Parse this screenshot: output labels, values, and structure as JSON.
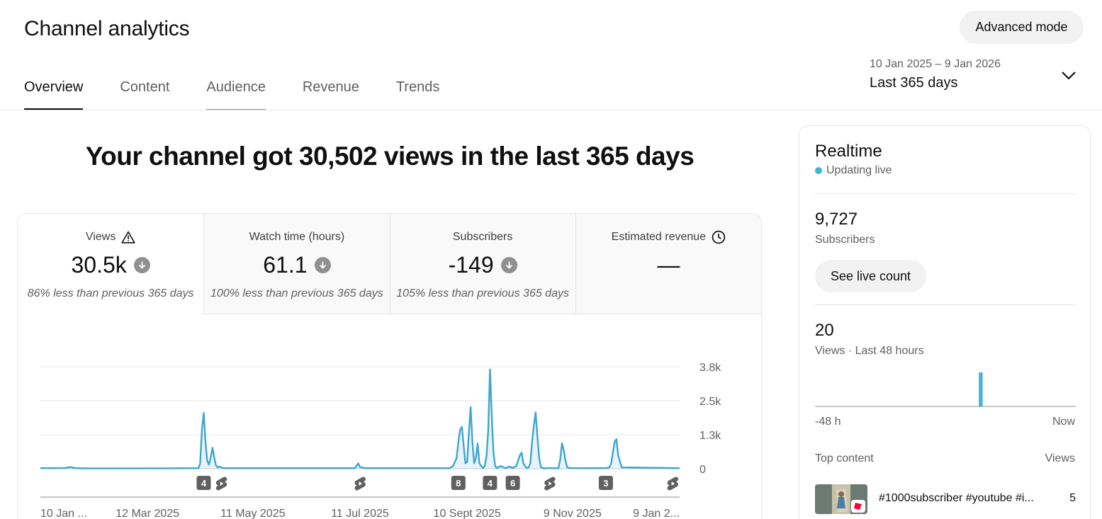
{
  "header": {
    "title": "Channel analytics",
    "advanced_mode_label": "Advanced mode"
  },
  "tabs": [
    {
      "label": "Overview"
    },
    {
      "label": "Content"
    },
    {
      "label": "Audience"
    },
    {
      "label": "Revenue"
    },
    {
      "label": "Trends"
    }
  ],
  "date_picker": {
    "range": "10 Jan 2025 – 9 Jan 2026",
    "label": "Last 365 days"
  },
  "headline": "Your channel got 30,502 views in the last 365 days",
  "metrics": [
    {
      "name": "Views",
      "value": "30.5k",
      "comparison": "86% less than previous 365 days",
      "icon": "warning-icon",
      "trend": "down"
    },
    {
      "name": "Watch time (hours)",
      "value": "61.1",
      "comparison": "100% less than previous 365 days",
      "trend": "down"
    },
    {
      "name": "Subscribers",
      "value": "-149",
      "comparison": "105% less than previous 365 days",
      "trend": "down"
    },
    {
      "name": "Estimated revenue",
      "value": "—",
      "comparison": "",
      "icon": "clock-icon"
    }
  ],
  "chart_data": {
    "type": "line",
    "series": [
      {
        "color": "#3ea6cf",
        "x": [
          "2025-01-10",
          "2025-01-24",
          "2025-01-27",
          "2025-01-30",
          "2025-02-08",
          "2025-03-20",
          "2025-04-10",
          "2025-04-11",
          "2025-04-12",
          "2025-04-13",
          "2025-04-14",
          "2025-04-15",
          "2025-04-16",
          "2025-04-17",
          "2025-04-18",
          "2025-04-19",
          "2025-04-20",
          "2025-04-21",
          "2025-04-22",
          "2025-04-24",
          "2025-07-08",
          "2025-07-09",
          "2025-07-10",
          "2025-07-11",
          "2025-07-14",
          "2025-08-31",
          "2025-09-02",
          "2025-09-04",
          "2025-09-05",
          "2025-09-06",
          "2025-09-07",
          "2025-09-08",
          "2025-09-09",
          "2025-09-10",
          "2025-09-11",
          "2025-09-12",
          "2025-09-13",
          "2025-09-14",
          "2025-09-15",
          "2025-09-16",
          "2025-09-17",
          "2025-09-18",
          "2025-09-19",
          "2025-09-20",
          "2025-09-21",
          "2025-09-22",
          "2025-09-23",
          "2025-09-24",
          "2025-09-25",
          "2025-09-26",
          "2025-09-27",
          "2025-09-29",
          "2025-10-02",
          "2025-10-04",
          "2025-10-06",
          "2025-10-08",
          "2025-10-09",
          "2025-10-10",
          "2025-10-11",
          "2025-10-12",
          "2025-10-13",
          "2025-10-14",
          "2025-10-15",
          "2025-10-16",
          "2025-10-17",
          "2025-10-18",
          "2025-10-19",
          "2025-10-20",
          "2025-10-21",
          "2025-10-22",
          "2025-10-23",
          "2025-10-24",
          "2025-10-25",
          "2025-10-26",
          "2025-10-28",
          "2025-11-01",
          "2025-11-02",
          "2025-11-03",
          "2025-11-04",
          "2025-11-05",
          "2025-11-06",
          "2025-11-08",
          "2025-11-28",
          "2025-11-30",
          "2025-12-01",
          "2025-12-02",
          "2025-12-03",
          "2025-12-04",
          "2025-12-05",
          "2025-12-07",
          "2026-01-09"
        ],
        "values": [
          20,
          30,
          60,
          20,
          10,
          15,
          20,
          200,
          1500,
          2080,
          1000,
          300,
          150,
          420,
          780,
          420,
          120,
          50,
          80,
          20,
          20,
          100,
          200,
          60,
          20,
          20,
          100,
          400,
          1000,
          1450,
          1560,
          900,
          200,
          250,
          1300,
          2300,
          1000,
          200,
          400,
          940,
          200,
          100,
          20,
          100,
          450,
          1400,
          3700,
          2000,
          600,
          100,
          20,
          100,
          20,
          80,
          30,
          100,
          300,
          500,
          600,
          200,
          100,
          20,
          50,
          200,
          1000,
          1600,
          2100,
          1200,
          400,
          60,
          20,
          10,
          20,
          30,
          20,
          20,
          350,
          950,
          700,
          300,
          50,
          20,
          20,
          50,
          200,
          600,
          1000,
          1100,
          500,
          50,
          20
        ]
      }
    ],
    "y_ticks": [
      "3.8k",
      "2.5k",
      "1.3k",
      "0"
    ],
    "ylim": [
      0,
      3800
    ],
    "x_ticks": [
      "10 Jan ...",
      "12 Mar 2025",
      "11 May 2025",
      "11 Jul 2025",
      "10 Sept 2025",
      "9 Nov 2025",
      "9 Jan 2..."
    ],
    "annotations": [
      {
        "type": "count",
        "label": "4",
        "x": "2025-04-13"
      },
      {
        "type": "shorts",
        "x": "2025-04-23"
      },
      {
        "type": "shorts",
        "x": "2025-07-11"
      },
      {
        "type": "count",
        "label": "8",
        "x": "2025-09-05"
      },
      {
        "type": "count",
        "label": "4",
        "x": "2025-09-23"
      },
      {
        "type": "count",
        "label": "6",
        "x": "2025-10-06"
      },
      {
        "type": "shorts",
        "x": "2025-10-27"
      },
      {
        "type": "count",
        "label": "3",
        "x": "2025-11-28"
      },
      {
        "type": "shorts",
        "x": "2026-01-05"
      }
    ]
  },
  "realtime": {
    "title": "Realtime",
    "status": "Updating live",
    "subscribers_value": "9,727",
    "subscribers_label": "Subscribers",
    "live_count_button": "See live count",
    "views_value": "20",
    "views_label": "Views · Last 48 hours",
    "mini_chart": {
      "type": "bar",
      "values": [
        0,
        0,
        0,
        0,
        0,
        0,
        0,
        0,
        0,
        0,
        0,
        0,
        0,
        0,
        0,
        0,
        0,
        0,
        0,
        0,
        0,
        0,
        0,
        0,
        0,
        0,
        0,
        0,
        0,
        0,
        20,
        0,
        0,
        0,
        0,
        0,
        0,
        0,
        0,
        0,
        0,
        0,
        0,
        0,
        0,
        0,
        0,
        0
      ],
      "color": "#41b4d9"
    },
    "axis_left": "-48 h",
    "axis_right": "Now",
    "top_content_label": "Top content",
    "top_content_views_label": "Views",
    "top_content": [
      {
        "title": "#1000subscriber #youtube #i...",
        "views": "5"
      }
    ]
  }
}
